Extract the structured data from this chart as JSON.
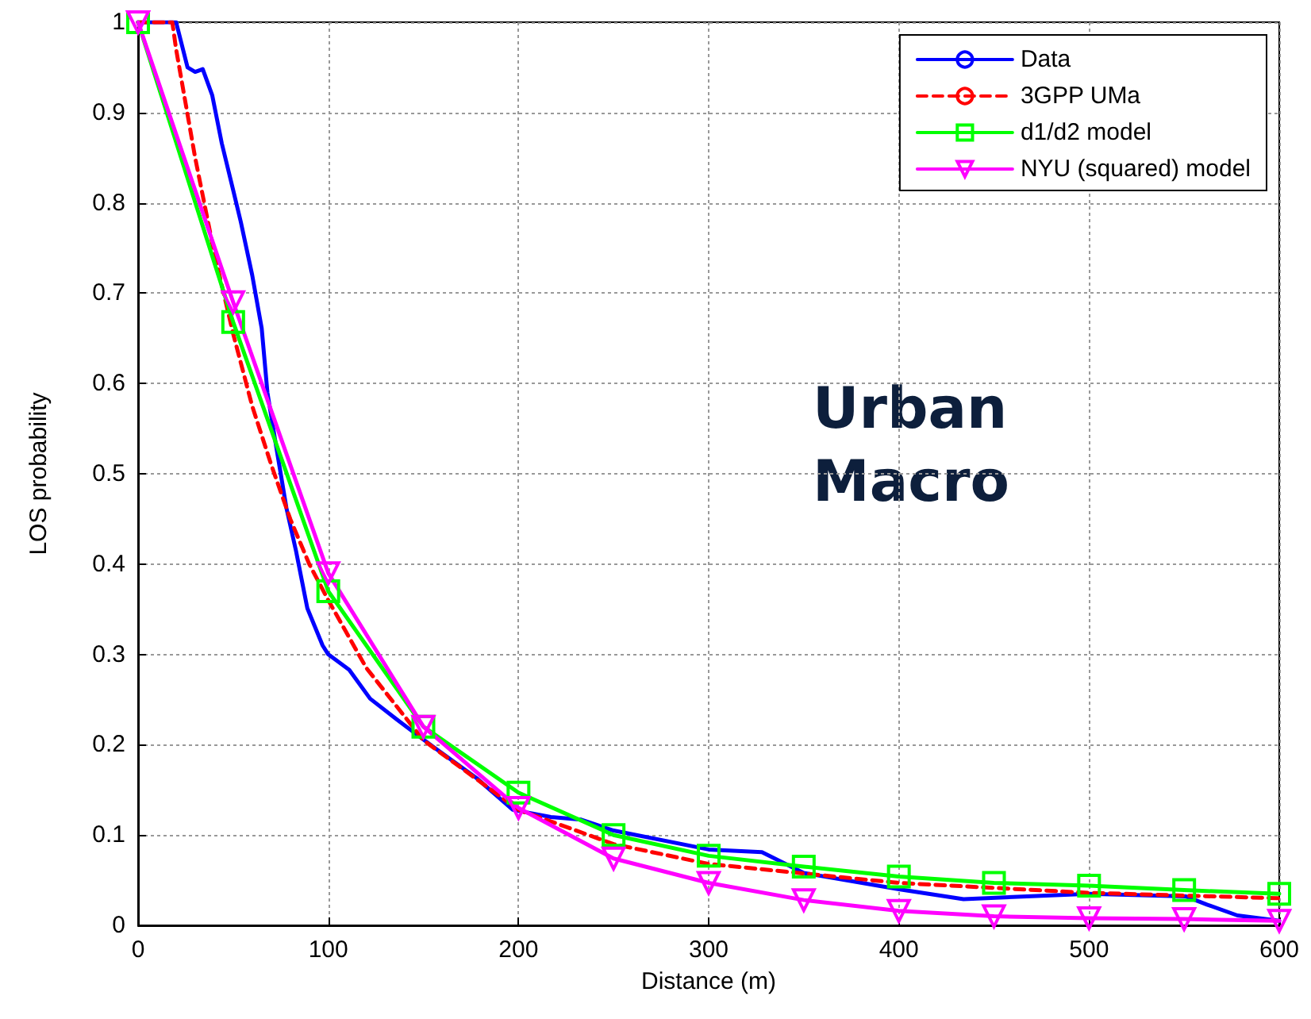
{
  "chart_data": {
    "type": "line",
    "xlabel": "Distance (m)",
    "ylabel": "LOS probability",
    "xlim": [
      0,
      600
    ],
    "ylim": [
      0,
      1
    ],
    "xticks": [
      0,
      100,
      200,
      300,
      400,
      500,
      600
    ],
    "yticks": [
      0,
      0.1,
      0.2,
      0.3,
      0.4,
      0.5,
      0.6,
      0.7,
      0.8,
      0.9,
      1
    ],
    "grid": true,
    "legend": "top right",
    "annotations": [
      "Urban Macro"
    ],
    "series": [
      {
        "name": "Data",
        "color": "#0000ff",
        "marker": "none",
        "line_style": "solid",
        "x": [
          0,
          20,
          26,
          30,
          34,
          39,
          44,
          50,
          54,
          60,
          65,
          68,
          72,
          78,
          83,
          89,
          97,
          100,
          111,
          122,
          136,
          155,
          178,
          197,
          217,
          233,
          250,
          300,
          328,
          350,
          400,
          434,
          500,
          551,
          562,
          578,
          600
        ],
        "values": [
          1,
          1,
          0.95,
          0.945,
          0.948,
          0.919,
          0.866,
          0.814,
          0.779,
          0.72,
          0.661,
          0.59,
          0.538,
          0.462,
          0.415,
          0.351,
          0.31,
          0.3,
          0.283,
          0.251,
          0.228,
          0.198,
          0.163,
          0.128,
          0.12,
          0.117,
          0.105,
          0.084,
          0.081,
          0.058,
          0.04,
          0.029,
          0.035,
          0.032,
          0.023,
          0.011,
          0.005
        ]
      },
      {
        "name": "3GPP UMa",
        "color": "#ff0000",
        "marker": "none",
        "line_style": "dashed",
        "x": [
          0,
          18,
          20,
          30,
          40,
          50,
          60,
          70,
          80,
          90,
          100,
          120,
          150,
          200,
          250,
          300,
          400,
          500,
          600
        ],
        "values": [
          1,
          1,
          0.97,
          0.85,
          0.745,
          0.655,
          0.575,
          0.51,
          0.45,
          0.4,
          0.36,
          0.285,
          0.205,
          0.128,
          0.09,
          0.068,
          0.047,
          0.036,
          0.03
        ]
      },
      {
        "name": "d1/d2 model",
        "color": "#00ff00",
        "marker": "square",
        "line_style": "solid",
        "x": [
          0,
          50,
          100,
          150,
          200,
          250,
          300,
          350,
          400,
          450,
          500,
          550,
          600
        ],
        "values": [
          1,
          0.668,
          0.37,
          0.22,
          0.147,
          0.1,
          0.077,
          0.065,
          0.054,
          0.047,
          0.044,
          0.039,
          0.035
        ]
      },
      {
        "name": "NYU (squared) model",
        "color": "#ff00ff",
        "marker": "triangle",
        "line_style": "solid",
        "x": [
          0,
          50,
          100,
          150,
          200,
          250,
          300,
          350,
          400,
          450,
          500,
          550,
          600
        ],
        "values": [
          1,
          0.69,
          0.39,
          0.22,
          0.13,
          0.074,
          0.047,
          0.028,
          0.016,
          0.01,
          0.008,
          0.007,
          0.005
        ]
      }
    ]
  }
}
